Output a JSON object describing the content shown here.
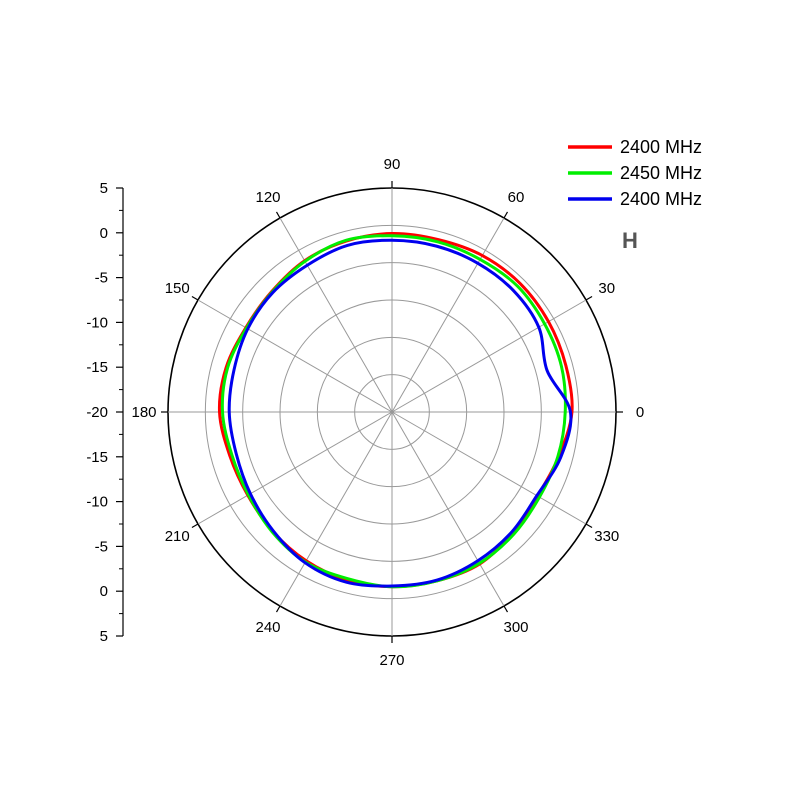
{
  "chart_data": {
    "type": "polar-line",
    "title": "",
    "annotation": "H",
    "angle_unit": "deg",
    "angle_ticks": [
      0,
      30,
      60,
      90,
      120,
      150,
      180,
      210,
      240,
      270,
      300,
      330
    ],
    "angle_tick_labels": [
      "0",
      "30",
      "60",
      "90",
      "120",
      "150",
      "180",
      "210",
      "240",
      "270",
      "300",
      "330"
    ],
    "r_range": [
      -25,
      5
    ],
    "r_axis_ticks": [
      5,
      0,
      -5,
      -10,
      -15,
      -20,
      -15,
      -10,
      -5,
      0,
      5
    ],
    "r_axis_tick_labels": [
      "5",
      "0",
      "-5",
      "-10",
      "-15",
      "-20",
      "-15",
      "-10",
      "-5",
      "0",
      "5"
    ],
    "r_rings": [
      -20,
      -15,
      -10,
      -5,
      0,
      5
    ],
    "grid": true,
    "legend_position": "top-right",
    "series": [
      {
        "name": "2400 MHz",
        "color": "#ff0000",
        "theta": [
          0,
          15,
          30,
          45,
          60,
          75,
          90,
          105,
          120,
          135,
          150,
          165,
          180,
          195,
          210,
          225,
          240,
          255,
          270,
          285,
          300,
          315,
          330,
          345
        ],
        "r": [
          -0.9,
          -0.9,
          -0.8,
          -0.7,
          -0.8,
          -1.1,
          -1.1,
          -1.3,
          -1.6,
          -2.2,
          -2.4,
          -2.0,
          -1.9,
          -2.5,
          -2.7,
          -2.4,
          -2.0,
          -1.7,
          -1.6,
          -1.6,
          -1.5,
          -2.1,
          -2.5,
          -1.9
        ]
      },
      {
        "name": "2450 MHz",
        "color": "#00ee00",
        "theta": [
          0,
          15,
          30,
          45,
          60,
          75,
          90,
          105,
          120,
          135,
          150,
          165,
          180,
          195,
          210,
          225,
          240,
          255,
          270,
          285,
          300,
          315,
          330,
          345
        ],
        "r": [
          -1.8,
          -1.5,
          -1.4,
          -1.2,
          -1.4,
          -1.4,
          -1.4,
          -1.2,
          -1.7,
          -2.3,
          -2.5,
          -2.2,
          -2.3,
          -2.8,
          -2.8,
          -2.3,
          -1.8,
          -1.9,
          -1.6,
          -1.6,
          -1.6,
          -1.9,
          -2.2,
          -2.0
        ]
      },
      {
        "name": "2400 MHz",
        "color": "#0000ee",
        "theta": [
          0,
          15,
          30,
          45,
          60,
          75,
          90,
          105,
          120,
          135,
          150,
          165,
          180,
          195,
          210,
          225,
          240,
          255,
          270,
          285,
          300,
          315,
          330,
          345
        ],
        "r": [
          -1.1,
          -3.5,
          -2.3,
          -2.0,
          -2.0,
          -2.0,
          -2.0,
          -1.9,
          -2.3,
          -2.4,
          -2.7,
          -3.1,
          -3.2,
          -3.4,
          -3.1,
          -2.5,
          -1.7,
          -1.4,
          -1.7,
          -1.7,
          -2.0,
          -2.3,
          -2.6,
          -1.6
        ]
      }
    ]
  }
}
